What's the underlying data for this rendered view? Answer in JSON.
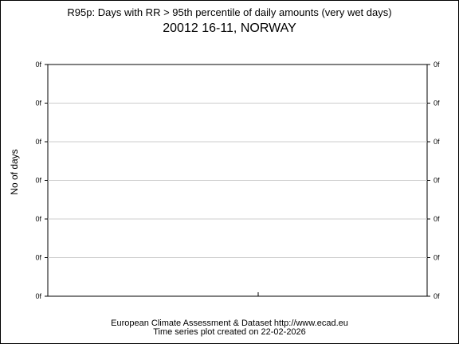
{
  "chart_data": {
    "type": "line",
    "title": "R95p: Days with RR > 95th percentile of daily amounts (very wet days)",
    "subtitle": "20012 16-11, NORWAY",
    "ylabel": "No of days",
    "xlabel": "",
    "x": [],
    "series": [],
    "y_tick_labels": [
      "0f",
      "0f",
      "0f",
      "0f",
      "0f",
      "0f",
      "0f"
    ],
    "grid": true,
    "right_axis_ticks": true
  },
  "footer": {
    "credit": "European Climate Assessment & Dataset  http://www.ecad.eu",
    "created": "Time series plot created on 22-02-2026"
  }
}
